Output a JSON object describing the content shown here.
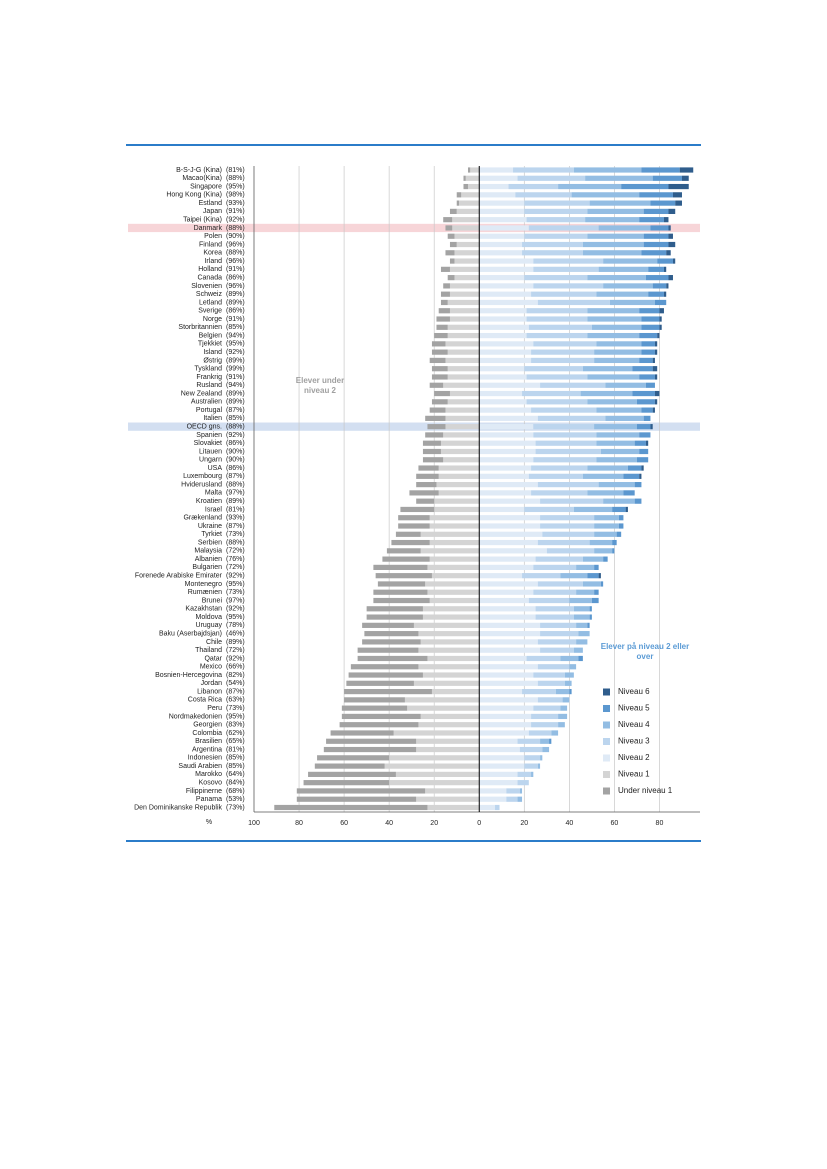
{
  "chart_data": {
    "type": "diverging-stacked-bar",
    "x_label": "%",
    "annotations": [
      "Elever under niveau 2",
      "Elever på niveau 2 eller over"
    ],
    "categories": [
      "B-S-J-G (Kina)",
      "Macao(Kina)",
      "Singapore",
      "Hong Kong (Kina)",
      "Estland",
      "Japan",
      "Taipei (Kina)",
      "Danmark",
      "Polen",
      "Finland",
      "Korea",
      "Irland",
      "Holland",
      "Canada",
      "Slovenien",
      "Schweiz",
      "Letland",
      "Sverige",
      "Norge",
      "Storbritannien",
      "Belgien",
      "Tjekkiet",
      "Island",
      "Østrig",
      "Tyskland",
      "Frankrig",
      "Rusland",
      "New Zealand",
      "Australien",
      "Portugal",
      "Italien",
      "OECD gns.",
      "Spanien",
      "Slovakiet",
      "Litauen",
      "Ungarn",
      "USA",
      "Luxembourg",
      "Hviderusland",
      "Malta",
      "Kroatien",
      "Israel",
      "Grækenland",
      "Ukraine",
      "Tyrkiet",
      "Serbien",
      "Malaysia",
      "Albanien",
      "Bulgarien",
      "Forenede Arabiske Emirater",
      "Montenegro",
      "Rumænien",
      "Brunei",
      "Kazakhstan",
      "Moldova",
      "Uruguay",
      "Baku (Aserbajdsjan)",
      "Chile",
      "Thailand",
      "Qatar",
      "Mexico",
      "Bosnien-Hercegovina",
      "Jordan",
      "Libanon",
      "Costa Rica",
      "Peru",
      "Nordmakedonien",
      "Georgien",
      "Colombia",
      "Brasilien",
      "Argentina",
      "Indonesien",
      "Saudi Arabien",
      "Marokko",
      "Kosovo",
      "Filippinerne",
      "Panama",
      "Den Dominikanske Republik"
    ],
    "coverage": [
      "(81%)",
      "(88%)",
      "(95%)",
      "(98%)",
      "(93%)",
      "(91%)",
      "(92%)",
      "(88%)",
      "(90%)",
      "(96%)",
      "(88%)",
      "(96%)",
      "(91%)",
      "(86%)",
      "(96%)",
      "(89%)",
      "(89%)",
      "(86%)",
      "(91%)",
      "(85%)",
      "(94%)",
      "(95%)",
      "(92%)",
      "(89%)",
      "(99%)",
      "(91%)",
      "(94%)",
      "(89%)",
      "(89%)",
      "(87%)",
      "(85%)",
      "(88%)",
      "(92%)",
      "(86%)",
      "(90%)",
      "(90%)",
      "(86%)",
      "(87%)",
      "(88%)",
      "(97%)",
      "(89%)",
      "(81%)",
      "(93%)",
      "(87%)",
      "(73%)",
      "(88%)",
      "(72%)",
      "(76%)",
      "(72%)",
      "(92%)",
      "(95%)",
      "(73%)",
      "(97%)",
      "(92%)",
      "(95%)",
      "(78%)",
      "(46%)",
      "(89%)",
      "(72%)",
      "(92%)",
      "(66%)",
      "(82%)",
      "(54%)",
      "(87%)",
      "(63%)",
      "(73%)",
      "(95%)",
      "(83%)",
      "(62%)",
      "(65%)",
      "(81%)",
      "(85%)",
      "(85%)",
      "(64%)",
      "(84%)",
      "(68%)",
      "(53%)",
      "(73%)"
    ],
    "series": [
      {
        "name": "Under niveau 1",
        "color": "#a3a3a3",
        "values": [
          -1,
          -1,
          -2,
          -2,
          -1,
          -3,
          -4,
          -3,
          -3,
          -3,
          -4,
          -2,
          -4,
          -3,
          -3,
          -4,
          -3,
          -5,
          -6,
          -5,
          -6,
          -6,
          -7,
          -7,
          -7,
          -7,
          -6,
          -7,
          -7,
          -7,
          -9,
          -8,
          -8,
          -8,
          -8,
          -9,
          -9,
          -10,
          -9,
          -13,
          -8,
          -15,
          -14,
          -14,
          -11,
          -17,
          -15,
          -21,
          -24,
          -25,
          -21,
          -24,
          -25,
          -25,
          -25,
          -23,
          -24,
          -26,
          -27,
          -31,
          -30,
          -33,
          -30,
          -39,
          -27,
          -29,
          -35,
          -35,
          -28,
          -40,
          -41,
          -32,
          -31,
          -39,
          -38,
          -57,
          -53,
          -68
        ]
      },
      {
        "name": "Niveau 1",
        "color": "#d4d4d4",
        "values": [
          -4,
          -6,
          -5,
          -8,
          -9,
          -10,
          -12,
          -12,
          -11,
          -10,
          -11,
          -11,
          -13,
          -11,
          -13,
          -13,
          -14,
          -13,
          -13,
          -14,
          -14,
          -15,
          -14,
          -15,
          -14,
          -14,
          -16,
          -13,
          -14,
          -15,
          -15,
          -15,
          -16,
          -17,
          -17,
          -16,
          -18,
          -18,
          -19,
          -18,
          -20,
          -20,
          -22,
          -22,
          -26,
          -22,
          -26,
          -22,
          -23,
          -21,
          -24,
          -23,
          -22,
          -25,
          -25,
          -29,
          -27,
          -26,
          -27,
          -23,
          -27,
          -25,
          -29,
          -21,
          -33,
          -32,
          -26,
          -27,
          -38,
          -28,
          -28,
          -40,
          -42,
          -37,
          -40,
          -24,
          -28,
          -23
        ]
      },
      {
        "name": "Niveau 2",
        "color": "#dfeaf6",
        "values": [
          15,
          17,
          13,
          16,
          20,
          20,
          21,
          22,
          20,
          19,
          19,
          24,
          24,
          20,
          24,
          23,
          26,
          21,
          21,
          22,
          21,
          24,
          23,
          23,
          20,
          21,
          27,
          19,
          21,
          23,
          26,
          24,
          24,
          25,
          25,
          24,
          23,
          22,
          26,
          23,
          27,
          20,
          27,
          27,
          28,
          26,
          30,
          25,
          24,
          19,
          26,
          24,
          22,
          25,
          25,
          27,
          27,
          26,
          27,
          21,
          26,
          24,
          26,
          19,
          26,
          24,
          23,
          23,
          22,
          17,
          18,
          20,
          20,
          17,
          17,
          12,
          12,
          7
        ]
      },
      {
        "name": "Niveau 3",
        "color": "#bcd5ee",
        "values": [
          27,
          30,
          22,
          25,
          29,
          28,
          26,
          31,
          28,
          27,
          27,
          31,
          29,
          28,
          31,
          29,
          32,
          27,
          27,
          28,
          27,
          28,
          28,
          28,
          26,
          27,
          29,
          26,
          27,
          29,
          30,
          27,
          28,
          27,
          29,
          28,
          25,
          24,
          27,
          25,
          28,
          22,
          24,
          24,
          23,
          23,
          21,
          21,
          19,
          17,
          20,
          19,
          18,
          17,
          17,
          16,
          17,
          17,
          15,
          15,
          14,
          14,
          12,
          15,
          11,
          12,
          12,
          12,
          10,
          10,
          10,
          7,
          6,
          6,
          5,
          6,
          5,
          2
        ]
      },
      {
        "name": "Niveau 4",
        "color": "#93bde3",
        "values": [
          30,
          30,
          28,
          30,
          27,
          25,
          24,
          23,
          25,
          27,
          26,
          24,
          22,
          26,
          22,
          23,
          20,
          23,
          24,
          22,
          23,
          20,
          21,
          20,
          22,
          23,
          18,
          23,
          22,
          20,
          17,
          19,
          19,
          17,
          17,
          18,
          18,
          18,
          16,
          16,
          14,
          17,
          11,
          11,
          10,
          10,
          8,
          9,
          8,
          12,
          8,
          8,
          10,
          7,
          7,
          5,
          5,
          5,
          4,
          8,
          3,
          4,
          3,
          6,
          3,
          3,
          4,
          3,
          3,
          4,
          3,
          1,
          1,
          1,
          0,
          1,
          2,
          0
        ]
      },
      {
        "name": "Niveau 5",
        "color": "#5b97cf",
        "values": [
          17,
          13,
          21,
          15,
          11,
          11,
          11,
          8,
          11,
          11,
          11,
          7,
          7,
          10,
          6,
          7,
          5,
          9,
          8,
          8,
          8,
          6,
          6,
          6,
          9,
          7,
          4,
          10,
          8,
          5,
          3,
          6,
          5,
          5,
          4,
          5,
          6,
          7,
          3,
          5,
          3,
          6,
          2,
          2,
          2,
          2,
          1,
          2,
          2,
          5,
          1,
          2,
          3,
          1,
          1,
          1,
          0,
          0,
          0,
          2,
          0,
          0,
          0,
          1,
          0,
          0,
          0,
          0,
          0,
          1,
          0,
          0,
          0,
          0,
          0,
          0,
          0,
          0
        ]
      },
      {
        "name": "Niveau 6",
        "color": "#2f5d8c",
        "values": [
          6,
          3,
          9,
          4,
          3,
          3,
          2,
          1,
          2,
          3,
          2,
          1,
          1,
          2,
          1,
          1,
          0,
          2,
          1,
          1,
          1,
          1,
          1,
          1,
          2,
          1,
          0,
          2,
          1,
          1,
          0,
          1,
          0,
          1,
          0,
          0,
          1,
          1,
          0,
          0,
          0,
          1,
          0,
          0,
          0,
          0,
          0,
          0,
          0,
          1,
          0,
          0,
          0,
          0,
          0,
          0,
          0,
          0,
          0,
          0,
          0,
          0,
          0,
          0,
          0,
          0,
          0,
          0,
          0,
          0,
          0,
          0,
          0,
          0,
          0,
          0,
          0,
          0
        ]
      }
    ],
    "xlim": [
      -100,
      98
    ],
    "xticks": [
      {
        "value": -100,
        "label": "100"
      },
      {
        "value": -80,
        "label": "80"
      },
      {
        "value": -60,
        "label": "60"
      },
      {
        "value": -40,
        "label": "40"
      },
      {
        "value": -20,
        "label": "20"
      },
      0,
      20,
      40,
      60,
      80
    ],
    "grid": true,
    "highlights": [
      {
        "index": 7,
        "color": "#f7d5d8"
      },
      {
        "index": 31,
        "color": "#d3dff1"
      }
    ]
  }
}
